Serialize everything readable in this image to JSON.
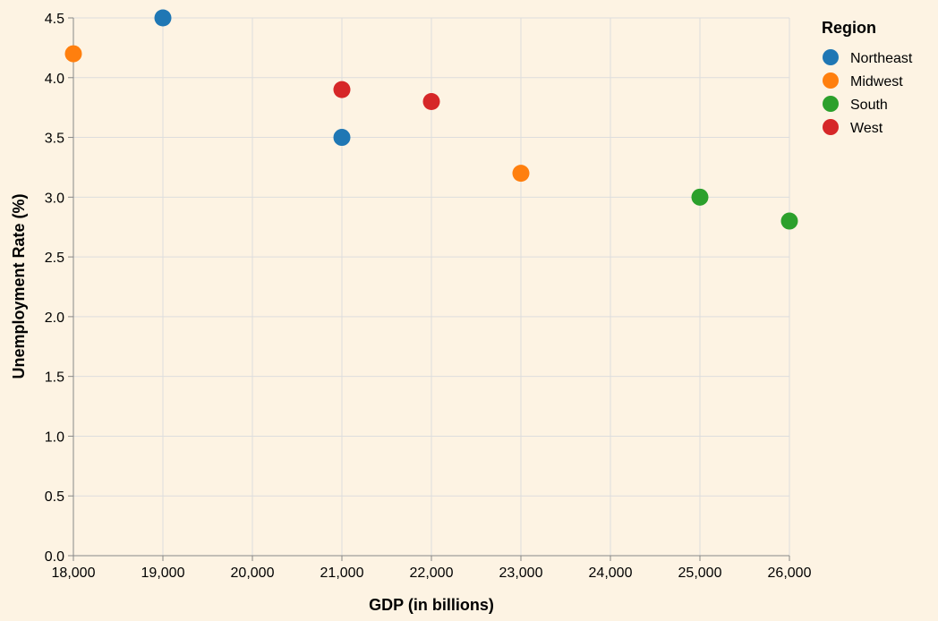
{
  "chart_data": {
    "type": "scatter",
    "xlabel": "GDP (in billions)",
    "ylabel": "Unemployment Rate (%)",
    "xlim": [
      18000,
      26000
    ],
    "ylim": [
      0,
      4.5
    ],
    "x_ticks": [
      18000,
      19000,
      20000,
      21000,
      22000,
      23000,
      24000,
      25000,
      26000
    ],
    "x_tick_labels": [
      "18,000",
      "19,000",
      "20,000",
      "21,000",
      "22,000",
      "23,000",
      "24,000",
      "25,000",
      "26,000"
    ],
    "y_ticks": [
      0,
      0.5,
      1,
      1.5,
      2,
      2.5,
      3,
      3.5,
      4,
      4.5
    ],
    "y_tick_labels": [
      "0.0",
      "0.5",
      "1.0",
      "1.5",
      "2.0",
      "2.5",
      "3.0",
      "3.5",
      "4.0",
      "4.5"
    ],
    "grid": true,
    "legend": {
      "title": "Region",
      "placement": "right"
    },
    "series": [
      {
        "name": "Northeast",
        "color": "#1f77b4",
        "points": [
          {
            "x": 19000,
            "y": 4.5
          },
          {
            "x": 21000,
            "y": 3.5
          }
        ]
      },
      {
        "name": "Midwest",
        "color": "#ff7f0e",
        "points": [
          {
            "x": 18000,
            "y": 4.2
          },
          {
            "x": 23000,
            "y": 3.2
          }
        ]
      },
      {
        "name": "South",
        "color": "#2ca02c",
        "points": [
          {
            "x": 25000,
            "y": 3.0
          },
          {
            "x": 26000,
            "y": 2.8
          }
        ]
      },
      {
        "name": "West",
        "color": "#d62728",
        "points": [
          {
            "x": 21000,
            "y": 3.9
          },
          {
            "x": 22000,
            "y": 3.8
          }
        ]
      }
    ]
  }
}
